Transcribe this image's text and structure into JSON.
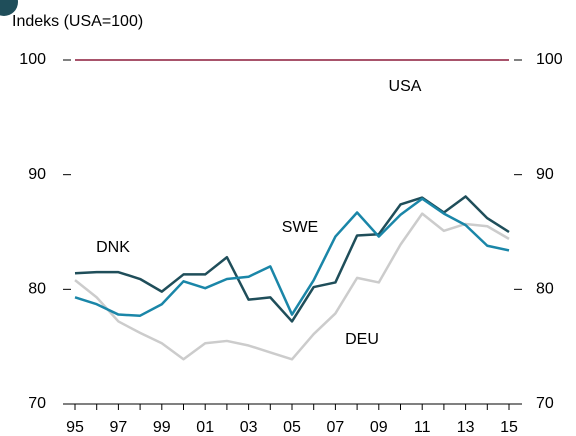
{
  "chart_data": {
    "type": "line",
    "y_label": "Indeks (USA=100)",
    "categories": [
      "95",
      null,
      "97",
      null,
      "99",
      null,
      "01",
      null,
      "03",
      null,
      "05",
      null,
      "07",
      null,
      "09",
      null,
      "11",
      null,
      "13",
      null,
      "15"
    ],
    "series": [
      {
        "name": "USA",
        "color": "#8b1a3a",
        "values": [
          100,
          100,
          100,
          100,
          100,
          100,
          100,
          100,
          100,
          100,
          100,
          100,
          100,
          100,
          100,
          100,
          100,
          100,
          100,
          100,
          100
        ]
      },
      {
        "name": "DEU",
        "color": "#cccccc",
        "values": [
          80.8,
          79.3,
          77.2,
          76.2,
          75.3,
          73.9,
          75.3,
          75.5,
          75.1,
          74.5,
          73.9,
          76.1,
          77.9,
          81.0,
          80.6,
          83.9,
          86.6,
          85.1,
          85.7,
          85.5,
          84.4
        ]
      },
      {
        "name": "DNK",
        "color": "#1f4e5a",
        "values": [
          81.4,
          81.5,
          81.5,
          80.9,
          79.8,
          81.3,
          81.3,
          82.8,
          79.1,
          79.3,
          77.2,
          80.2,
          80.6,
          84.7,
          84.8,
          87.4,
          88.0,
          86.7,
          88.1,
          86.2,
          85.0
        ]
      },
      {
        "name": "SWE",
        "color": "#1a86a8",
        "values": [
          79.3,
          78.7,
          77.8,
          77.7,
          78.7,
          80.7,
          80.1,
          80.9,
          81.1,
          82.0,
          77.8,
          80.8,
          84.6,
          86.7,
          84.6,
          86.5,
          87.9,
          86.6,
          85.6,
          83.8,
          83.4
        ]
      }
    ],
    "ylim": [
      70,
      100
    ],
    "yticks": [
      70,
      80,
      90,
      100
    ]
  }
}
